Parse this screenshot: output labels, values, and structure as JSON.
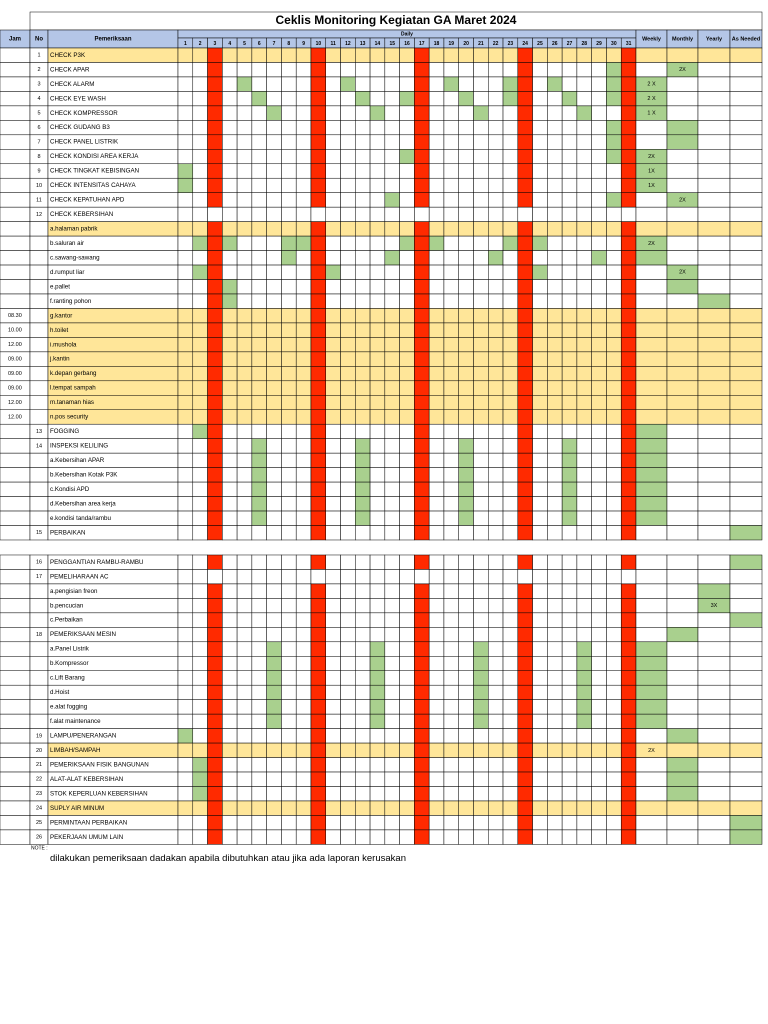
{
  "header": {
    "title": "Ceklis Monitoring Kegiatan GA Maret 2024",
    "jam": "Jam",
    "no": "No",
    "pemeriksaan": "Pemeriksaan",
    "daily": "Daily",
    "days": [
      1,
      2,
      3,
      4,
      5,
      6,
      7,
      8,
      9,
      10,
      11,
      12,
      13,
      14,
      15,
      16,
      17,
      18,
      19,
      20,
      21,
      22,
      23,
      24,
      25,
      26,
      27,
      28,
      29,
      30,
      31
    ],
    "weekly": "Weekly",
    "monthly": "Monthly",
    "yearly": "Yearly",
    "as_needed": "As Needed"
  },
  "table": {
    "rows": [
      {
        "no": "1",
        "item": "CHECK P3K"
      },
      {
        "no": "2",
        "item": "CHECK APAR",
        "monthly": "2X"
      },
      {
        "no": "3",
        "item": "CHECK ALARM",
        "weekly": "2 X"
      },
      {
        "no": "4",
        "item": "CHECK EYE WASH",
        "weekly": "2 X"
      },
      {
        "no": "5",
        "item": "CHECK KOMPRESSOR",
        "weekly": "1 X"
      },
      {
        "no": "6",
        "item": "CHECK GUDANG B3"
      },
      {
        "no": "7",
        "item": "CHECK PANEL LISTRIK"
      },
      {
        "no": "8",
        "item": "CHECK KONDISI AREA KERJA",
        "weekly": "2X"
      },
      {
        "no": "9",
        "item": "CHECK TINGKAT KEBISINGAN",
        "weekly": "1X"
      },
      {
        "no": "10",
        "item": "CHECK INTENSITAS CAHAYA",
        "weekly": "1X"
      },
      {
        "no": "11",
        "item": "CHECK KEPATUHAN APD",
        "monthly": "2X"
      },
      {
        "no": "12",
        "item": "CHECK KEBERSIHAN"
      },
      {
        "item": "a.halaman pabrik"
      },
      {
        "item": "b.saluran air",
        "weekly": "2X"
      },
      {
        "item": "c.sawang-sawang"
      },
      {
        "item": "d.rumput liar",
        "monthly": "2X"
      },
      {
        "item": "e.pallet"
      },
      {
        "item": "f.ranting pohon"
      },
      {
        "jam": "08.30",
        "item": "g.kantor"
      },
      {
        "jam": "10.00",
        "item": "h.toilet"
      },
      {
        "jam": "12.00",
        "item": "i.mushola"
      },
      {
        "jam": "09.00",
        "item": "j.kantin"
      },
      {
        "jam": "09.00",
        "item": "k.depan gerbang"
      },
      {
        "jam": "09.00",
        "item": "l.tempat sampah"
      },
      {
        "jam": "12.00",
        "item": "m.tanaman hias"
      },
      {
        "jam": "12.00",
        "item": "n.pos security"
      },
      {
        "no": "13",
        "item": "FOGGING"
      },
      {
        "no": "14",
        "item": "INSPEKSI KELILING"
      },
      {
        "item": "a.Kebersihan APAR"
      },
      {
        "item": "b.Kebersihan Kotak P3K"
      },
      {
        "item": "c.Kondisi APD"
      },
      {
        "item": "d.Kebersihan area kerja"
      },
      {
        "item": "e.kondisi tanda/rambu"
      },
      {
        "no": "15",
        "item": "PERBAIKAN"
      },
      {
        "no": "16",
        "item": "PENGGANTIAN RAMBU-RAMBU"
      },
      {
        "no": "17",
        "item": "PEMELIHARAAN AC"
      },
      {
        "item": "a.pengisian freon"
      },
      {
        "item": "b.pencucian",
        "yearly": "3X"
      },
      {
        "item": "c.Perbaikan"
      },
      {
        "no": "18",
        "item": "PEMERIKSAAN MESIN"
      },
      {
        "item": "a.Panel Listrik"
      },
      {
        "item": "b.Kompressor"
      },
      {
        "item": "c.Lift Barang"
      },
      {
        "item": "d.Hoist"
      },
      {
        "item": "e.alat fogging"
      },
      {
        "item": "f.alat maintenance"
      },
      {
        "no": "19",
        "item": "LAMPU/PENERANGAN"
      },
      {
        "no": "20",
        "item": "LIMBAH/SAMPAH",
        "weekly": "2X"
      },
      {
        "no": "21",
        "item": "PEMERIKSAAN FISIK BANGUNAN"
      },
      {
        "no": "22",
        "item": "ALAT-ALAT KEBERSIHAN"
      },
      {
        "no": "23",
        "item": "STOK KEPERLUAN KEBERSIHAN"
      },
      {
        "no": "24",
        "item": "SUPLY AIR MINUM"
      },
      {
        "no": "25",
        "item": "PERMINTAAN PERBAIKAN"
      },
      {
        "no": "26",
        "item": "PEKERJAAN UMUM LAIN"
      }
    ]
  },
  "note": {
    "label": "NOTE :",
    "text": "dilakukan pemeriksaan dadakan apabila dibutuhkan atau jika ada laporan kerusakan"
  }
}
